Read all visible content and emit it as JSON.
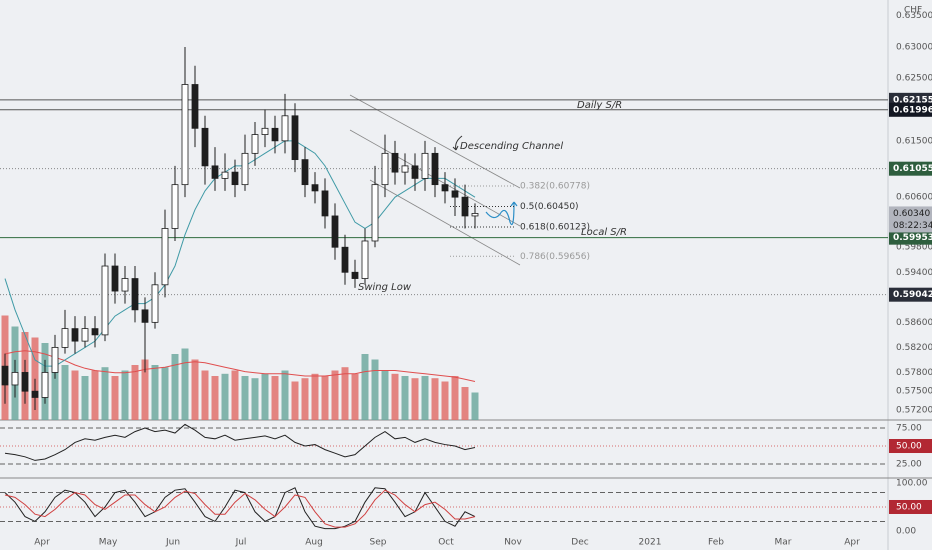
{
  "chart_data": {
    "type": "candlestick",
    "currency": "CHF",
    "xlim": [
      -0.5,
      88.3
    ],
    "xticks": [
      {
        "value": 3.7,
        "label": "Apr"
      },
      {
        "value": 10.3,
        "label": "May"
      },
      {
        "value": 16.8,
        "label": "Jun"
      },
      {
        "value": 23.6,
        "label": "Jul"
      },
      {
        "value": 30.9,
        "label": "Aug"
      },
      {
        "value": 37.3,
        "label": "Sep"
      },
      {
        "value": 44.1,
        "label": "Oct"
      },
      {
        "value": 50.8,
        "label": "Nov"
      },
      {
        "value": 57.5,
        "label": "Dec"
      },
      {
        "value": 64.5,
        "label": "2021"
      },
      {
        "value": 71.1,
        "label": "Feb"
      },
      {
        "value": 77.8,
        "label": "Mar"
      },
      {
        "value": 84.7,
        "label": "Apr"
      }
    ],
    "ylim": [
      0.5704,
      0.6375
    ],
    "yticks": [
      {
        "value": 0.635,
        "label": "0.63500"
      },
      {
        "value": 0.63,
        "label": "0.63000"
      },
      {
        "value": 0.625,
        "label": "0.62500"
      },
      {
        "value": 0.615,
        "label": "0.61500"
      },
      {
        "value": 0.606,
        "label": "0.60600"
      },
      {
        "value": 0.598,
        "label": "0.59800"
      },
      {
        "value": 0.594,
        "label": "0.59400"
      },
      {
        "value": 0.586,
        "label": "0.58600"
      },
      {
        "value": 0.582,
        "label": "0.58200"
      },
      {
        "value": 0.578,
        "label": "0.57800"
      },
      {
        "value": 0.575,
        "label": "0.57500"
      },
      {
        "value": 0.572,
        "label": "0.57200"
      }
    ],
    "up_color": "#ffffff",
    "down_color": "#1e1e1e",
    "open": [
      0.579,
      0.576,
      0.578,
      0.575,
      0.574,
      0.578,
      0.582,
      0.585,
      0.583,
      0.585,
      0.584,
      0.595,
      0.591,
      0.593,
      0.588,
      0.586,
      0.592,
      0.601,
      0.608,
      0.624,
      0.617,
      0.611,
      0.609,
      0.61,
      0.608,
      0.613,
      0.616,
      0.617,
      0.615,
      0.619,
      0.612,
      0.608,
      0.607,
      0.603,
      0.598,
      0.594,
      0.593,
      0.599,
      0.608,
      0.613,
      0.61,
      0.611,
      0.609,
      0.613,
      0.608,
      0.607,
      0.606,
      0.603
    ],
    "high": [
      0.581,
      0.58,
      0.58,
      0.577,
      0.58,
      0.584,
      0.588,
      0.587,
      0.587,
      0.587,
      0.597,
      0.597,
      0.595,
      0.595,
      0.59,
      0.594,
      0.604,
      0.611,
      0.63,
      0.627,
      0.619,
      0.614,
      0.613,
      0.612,
      0.616,
      0.618,
      0.62,
      0.619,
      0.6225,
      0.621,
      0.614,
      0.61,
      0.609,
      0.605,
      0.6,
      0.596,
      0.601,
      0.611,
      0.616,
      0.615,
      0.613,
      0.613,
      0.615,
      0.614,
      0.61,
      0.609,
      0.608,
      0.605
    ],
    "low": [
      0.573,
      0.574,
      0.573,
      0.572,
      0.573,
      0.577,
      0.581,
      0.581,
      0.582,
      0.582,
      0.583,
      0.589,
      0.589,
      0.586,
      0.578,
      0.585,
      0.59,
      0.599,
      0.606,
      0.614,
      0.608,
      0.607,
      0.607,
      0.606,
      0.607,
      0.611,
      0.614,
      0.613,
      0.613,
      0.61,
      0.606,
      0.605,
      0.601,
      0.596,
      0.592,
      0.5915,
      0.592,
      0.598,
      0.606,
      0.608,
      0.608,
      0.607,
      0.607,
      0.606,
      0.605,
      0.603,
      0.601,
      0.601
    ],
    "close": [
      0.576,
      0.578,
      0.575,
      0.574,
      0.578,
      0.582,
      0.585,
      0.583,
      0.585,
      0.584,
      0.595,
      0.591,
      0.593,
      0.588,
      0.586,
      0.592,
      0.601,
      0.608,
      0.624,
      0.617,
      0.611,
      0.609,
      0.61,
      0.608,
      0.613,
      0.616,
      0.617,
      0.615,
      0.619,
      0.612,
      0.608,
      0.607,
      0.603,
      0.598,
      0.594,
      0.593,
      0.599,
      0.608,
      0.613,
      0.61,
      0.611,
      0.609,
      0.613,
      0.608,
      0.607,
      0.606,
      0.603,
      0.6034
    ],
    "ma": {
      "color": "#3f9aa6",
      "values": [
        0.593,
        0.588,
        0.584,
        0.58,
        0.579,
        0.579,
        0.58,
        0.581,
        0.582,
        0.583,
        0.585,
        0.587,
        0.588,
        0.589,
        0.589,
        0.59,
        0.592,
        0.595,
        0.6,
        0.604,
        0.607,
        0.609,
        0.61,
        0.611,
        0.611,
        0.612,
        0.613,
        0.614,
        0.615,
        0.615,
        0.614,
        0.613,
        0.611,
        0.608,
        0.605,
        0.602,
        0.601,
        0.602,
        0.604,
        0.606,
        0.607,
        0.608,
        0.609,
        0.609,
        0.609,
        0.608,
        0.607,
        0.606
      ]
    },
    "volume": {
      "up_color": "#6fa99f",
      "down_color": "#e0716c",
      "ma_color": "#e04e4e",
      "values": [
        95,
        85,
        80,
        75,
        70,
        55,
        50,
        45,
        40,
        45,
        48,
        40,
        45,
        50,
        55,
        50,
        48,
        60,
        65,
        55,
        45,
        40,
        42,
        45,
        40,
        38,
        42,
        40,
        45,
        35,
        38,
        42,
        40,
        45,
        48,
        42,
        60,
        55,
        45,
        42,
        40,
        38,
        40,
        38,
        35,
        40,
        30,
        25
      ],
      "ma": [
        60,
        62,
        63,
        62,
        60,
        57,
        54,
        50,
        47,
        45,
        44,
        43,
        43,
        44,
        46,
        47,
        48,
        50,
        52,
        53,
        52,
        50,
        48,
        46,
        44,
        43,
        42,
        42,
        42,
        41,
        40,
        40,
        40,
        41,
        42,
        42,
        44,
        45,
        45,
        45,
        44,
        43,
        42,
        41,
        40,
        39,
        37,
        35
      ]
    },
    "levels": [
      {
        "value": 0.62155,
        "style": "solid",
        "color": "#555555",
        "box": "#2a2e39"
      },
      {
        "value": 0.61996,
        "style": "solid",
        "color": "#555555",
        "box": "#131722"
      },
      {
        "value": 0.61055,
        "style": "dotted",
        "color": "#777777",
        "box": "#2e5e3e"
      },
      {
        "value": 0.59953,
        "style": "solid",
        "color": "#2f6b3d",
        "box": "#2e5e3e"
      },
      {
        "value": 0.59042,
        "style": "dotted",
        "color": "#777777",
        "box": "#2a2e39"
      }
    ],
    "last_price": {
      "value": 0.6034,
      "label": "0.60340",
      "countdown": "08:22:34",
      "box": "#b2b5be"
    },
    "fib": [
      {
        "value": 0.60778,
        "label": "0.382(0.60778)",
        "color": "#9a9a9a"
      },
      {
        "value": 0.6045,
        "label": "0.5(0.60450)",
        "color": "#333333"
      },
      {
        "value": 0.60123,
        "label": "0.618(0.60123)",
        "color": "#333333"
      },
      {
        "value": 0.59656,
        "label": "0.786(0.59656)",
        "color": "#9a9a9a"
      }
    ],
    "annotations": [
      "Daily S/R",
      "Descending Channel",
      "Local S/R",
      "Swing Low"
    ],
    "rsi": {
      "ylim": [
        5.6,
        86.1
      ],
      "yticks": [
        {
          "value": 75,
          "label": "75.00"
        },
        {
          "value": 50,
          "label": "50.00"
        },
        {
          "value": 25,
          "label": "25.00"
        }
      ],
      "values": [
        40,
        38,
        35,
        30,
        32,
        38,
        45,
        55,
        60,
        58,
        62,
        65,
        62,
        70,
        75,
        70,
        72,
        68,
        80,
        72,
        62,
        60,
        65,
        58,
        60,
        62,
        64,
        60,
        65,
        55,
        50,
        52,
        45,
        40,
        35,
        38,
        50,
        62,
        70,
        60,
        62,
        55,
        60,
        55,
        52,
        50,
        45,
        48
      ]
    },
    "stoch": {
      "ylim": [
        -39.6,
        110.4
      ],
      "yticks": [
        {
          "value": 100,
          "label": "100.00"
        },
        {
          "value": 50,
          "label": "50.00"
        },
        {
          "value": 0,
          "label": "0.00"
        }
      ],
      "bands": [
        80,
        20
      ],
      "k": [
        80,
        60,
        30,
        20,
        40,
        70,
        85,
        80,
        60,
        30,
        50,
        80,
        85,
        60,
        30,
        40,
        70,
        85,
        88,
        60,
        30,
        20,
        50,
        85,
        80,
        40,
        20,
        30,
        80,
        90,
        40,
        10,
        5,
        5,
        10,
        20,
        60,
        90,
        88,
        60,
        30,
        40,
        80,
        50,
        20,
        10,
        40,
        30
      ],
      "d": [
        75,
        70,
        55,
        35,
        30,
        45,
        65,
        80,
        75,
        55,
        45,
        60,
        75,
        75,
        55,
        40,
        50,
        70,
        83,
        78,
        55,
        35,
        35,
        60,
        78,
        65,
        45,
        30,
        50,
        75,
        70,
        40,
        15,
        8,
        8,
        15,
        35,
        65,
        85,
        75,
        55,
        40,
        55,
        60,
        45,
        25,
        25,
        30
      ]
    }
  }
}
